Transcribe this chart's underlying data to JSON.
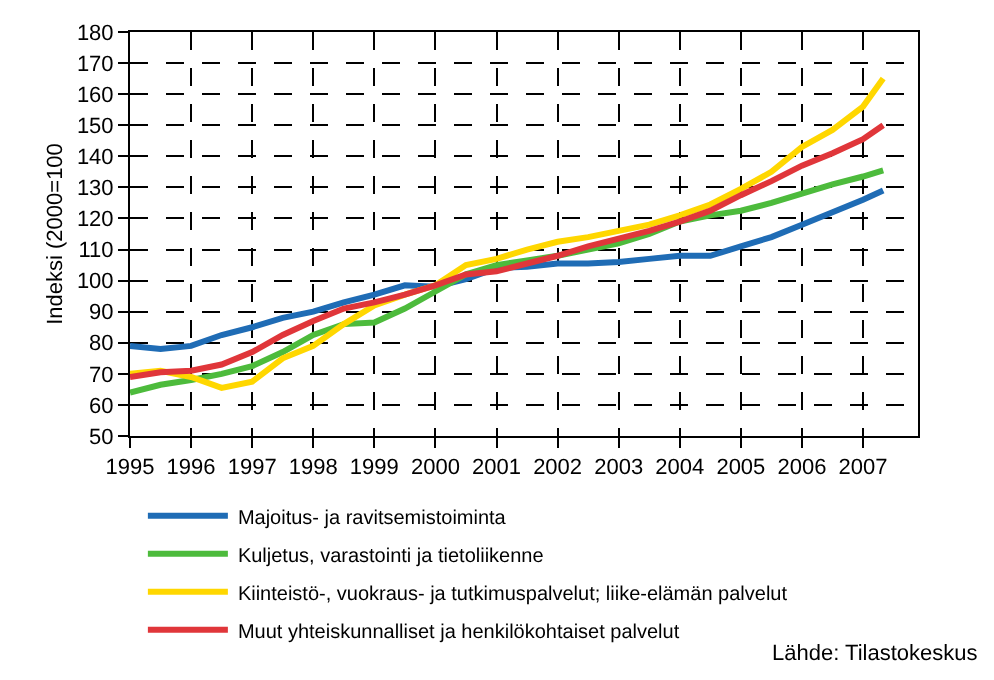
{
  "chart_data": {
    "type": "line",
    "ylabel": "Indeksi (2000=100",
    "xlim": [
      1995,
      2007.9
    ],
    "xticks": [
      1995,
      1996,
      1997,
      1998,
      1999,
      2000,
      2001,
      2002,
      2003,
      2004,
      2005,
      2006,
      2007
    ],
    "ylim": [
      50,
      180
    ],
    "yticks": [
      50,
      60,
      70,
      80,
      90,
      100,
      110,
      120,
      130,
      140,
      150,
      160,
      170,
      180
    ],
    "grid": true,
    "legend": "bottom",
    "line_style": "solid",
    "marker": "none",
    "x": [
      1995,
      1995.5,
      1996,
      1996.5,
      1997,
      1997.5,
      1998,
      1998.5,
      1999,
      1999.5,
      2000,
      2000.5,
      2001,
      2001.5,
      2002,
      2002.5,
      2003,
      2003.5,
      2004,
      2004.5,
      2005,
      2005.5,
      2006,
      2006.5,
      2007,
      2007.33
    ],
    "series": [
      {
        "name": "Majoitus- ja ravitsemistoiminta",
        "color": "#1f6cb5",
        "values": [
          79,
          78,
          79,
          82.5,
          85,
          88,
          90,
          93,
          95.5,
          98.5,
          98,
          100.5,
          104,
          104.5,
          105.5,
          105.5,
          106,
          107,
          108,
          108,
          111,
          114,
          118,
          122,
          126,
          129
        ]
      },
      {
        "name": "Kuljetus, varastointi ja tietoliikenne",
        "color": "#4dbb3c",
        "values": [
          64,
          66.5,
          68,
          70,
          72.5,
          77,
          82.5,
          86,
          86.5,
          91,
          96.5,
          102,
          105,
          106.5,
          108,
          110,
          112,
          115,
          119,
          121,
          122.5,
          125,
          128,
          131,
          133.5,
          135.5
        ]
      },
      {
        "name": "Kiinteistö-, vuokraus- ja tutkimuspalvelut; liike-elämän palvelut",
        "color": "#ffd700",
        "values": [
          70,
          71,
          69,
          65.5,
          67.5,
          75,
          79,
          86,
          92,
          95.5,
          98.5,
          105,
          107,
          110,
          112.5,
          114,
          116,
          118,
          121,
          124.5,
          129.5,
          135,
          143,
          148.5,
          156,
          165
        ]
      },
      {
        "name": "Muut yhteiskunnalliset ja henkilökohtaiset palvelut",
        "color": "#e0363a",
        "values": [
          69,
          70.5,
          71,
          73,
          77,
          82.5,
          87,
          91,
          93,
          95.5,
          98.5,
          102,
          103,
          105.5,
          108,
          111,
          113.5,
          116,
          119,
          122.5,
          127.5,
          132,
          137,
          141,
          145.5,
          150
        ]
      }
    ],
    "annotations": [
      "Lähde: Tilastokeskus"
    ]
  }
}
